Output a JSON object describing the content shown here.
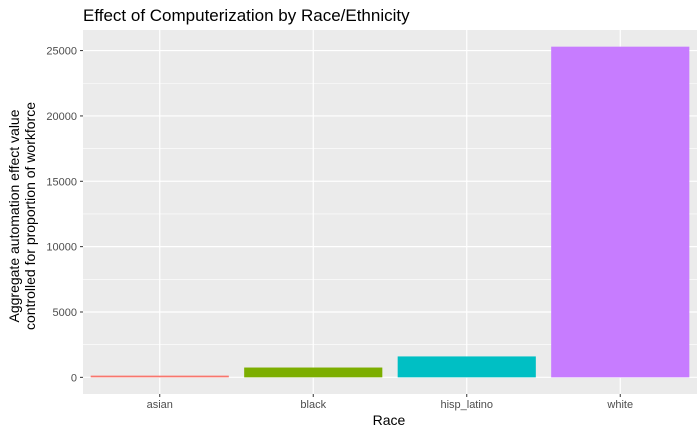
{
  "chart_data": {
    "type": "bar",
    "title": "Effect of Computerization by Race/Ethnicity",
    "xlabel": "Race",
    "ylabel": [
      "Aggregate automation effect value",
      "controlled for proportion of workforce"
    ],
    "categories": [
      "asian",
      "black",
      "hisp_latino",
      "white"
    ],
    "values": [
      130,
      750,
      1600,
      25300
    ],
    "colors": [
      "#F8766D",
      "#7CAE00",
      "#00BFC4",
      "#C77CFF"
    ],
    "ylim": [
      -1275,
      26575
    ],
    "yticks": [
      0,
      5000,
      10000,
      15000,
      20000,
      25000
    ],
    "ytick_labels": [
      "0",
      "5000",
      "10000",
      "15000",
      "20000",
      "25000"
    ],
    "grid": true,
    "legend": "none",
    "panel_background": "#EBEBEB",
    "grid_color": "#FFFFFF"
  }
}
